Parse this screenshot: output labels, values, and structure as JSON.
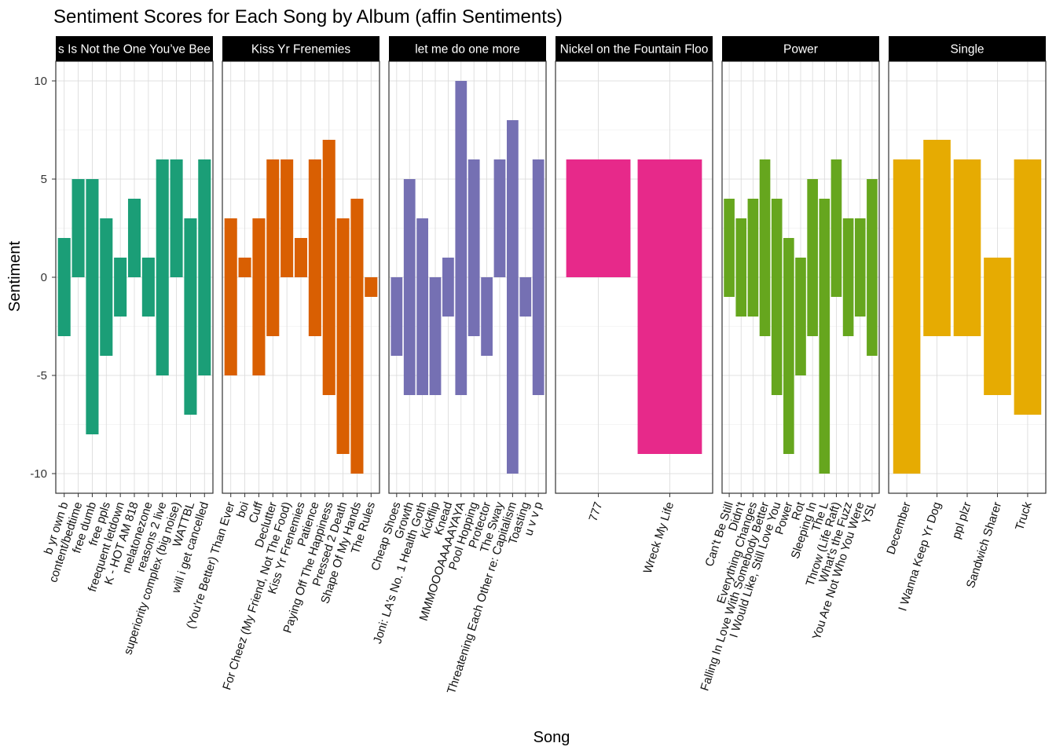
{
  "chart_data": {
    "type": "bar",
    "title": "Sentiment Scores for Each Song by Album (affin Sentiments)",
    "xlabel": "Song",
    "ylabel": "Sentiment",
    "ylim": [
      -11,
      11
    ],
    "y_ticks": [
      -10,
      -5,
      0,
      5,
      10
    ],
    "y_tick_labels": [
      "-10",
      "-5",
      "0",
      "5",
      "10"
    ],
    "grid": true,
    "facets": [
      {
        "album": "This Is Not the One You've Been Looking For",
        "label": "s Is Not the One You’ve Bee",
        "color": "#1B9E77",
        "songs": [
          {
            "name": "b yr own b",
            "pos": 2,
            "neg": -3
          },
          {
            "name": "content/bedtime",
            "pos": 5,
            "neg": 0
          },
          {
            "name": "free dumb",
            "pos": 5,
            "neg": -8
          },
          {
            "name": "free ppls",
            "pos": 3,
            "neg": -4
          },
          {
            "name": "freequent letdown",
            "pos": 1,
            "neg": -2
          },
          {
            "name": "K - HOT AM 818",
            "pos": 4,
            "neg": 0
          },
          {
            "name": "melatonezone",
            "pos": 1,
            "neg": -2
          },
          {
            "name": "reasons 2 live",
            "pos": 6,
            "neg": -5
          },
          {
            "name": "superiority complex (big noise)",
            "pos": 6,
            "neg": 0
          },
          {
            "name": "WATTBL",
            "pos": 3,
            "neg": -7
          },
          {
            "name": "will i get cancelled",
            "pos": 6,
            "neg": -5
          }
        ]
      },
      {
        "album": "Kiss Yr Frenemies",
        "label": "Kiss Yr Frenemies",
        "color": "#D95F02",
        "songs": [
          {
            "name": "(You're Better) Than Ever",
            "pos": 3,
            "neg": -5
          },
          {
            "name": "boi",
            "pos": 1,
            "neg": 0
          },
          {
            "name": "Cuff",
            "pos": 3,
            "neg": -5
          },
          {
            "name": "Declutter",
            "pos": 6,
            "neg": -3
          },
          {
            "name": "For Cheez (My Friend, Not The Food)",
            "pos": 6,
            "neg": 0
          },
          {
            "name": "Kiss Yr Frenemies",
            "pos": 2,
            "neg": 0
          },
          {
            "name": "Patience",
            "pos": 6,
            "neg": -3
          },
          {
            "name": "Paying Off The Happiness",
            "pos": 7,
            "neg": -6
          },
          {
            "name": "Pressed 2 Death",
            "pos": 3,
            "neg": -9
          },
          {
            "name": "Shape Of My Hands",
            "pos": 4,
            "neg": -10
          },
          {
            "name": "The Rules",
            "pos": 0,
            "neg": -1
          }
        ]
      },
      {
        "album": "let me do one more",
        "label": "let me do one more",
        "color": "#7570B3",
        "songs": [
          {
            "name": "Cheap Shoes",
            "pos": 0,
            "neg": -4
          },
          {
            "name": "Growth",
            "pos": 5,
            "neg": -6
          },
          {
            "name": "Joni: LA's No. 1 Health Goth",
            "pos": 3,
            "neg": -6
          },
          {
            "name": "Kickflip",
            "pos": 0,
            "neg": -6
          },
          {
            "name": "Knead",
            "pos": 1,
            "neg": -2
          },
          {
            "name": "MMMOOOAAAAAYAYA",
            "pos": 10,
            "neg": -6
          },
          {
            "name": "Pool Hopping",
            "pos": 6,
            "neg": -3
          },
          {
            "name": "Protector",
            "pos": 0,
            "neg": -4
          },
          {
            "name": "The Sway",
            "pos": 6,
            "neg": 0
          },
          {
            "name": "Threatening Each Other re: Capitalism",
            "pos": 8,
            "neg": -10
          },
          {
            "name": "Toasting",
            "pos": 0,
            "neg": -2
          },
          {
            "name": "u v v p",
            "pos": 6,
            "neg": -6
          }
        ]
      },
      {
        "album": "Nickel on the Fountain Floor",
        "label": "Nickel on the Fountain Floo",
        "color": "#E7298A",
        "songs": [
          {
            "name": "777",
            "pos": 6,
            "neg": 0
          },
          {
            "name": "Wreck My Life",
            "pos": 6,
            "neg": -9
          }
        ]
      },
      {
        "album": "Power",
        "label": "Power",
        "color": "#66A61E",
        "songs": [
          {
            "name": "Can't Be Still",
            "pos": 4,
            "neg": -1
          },
          {
            "name": "Didn't",
            "pos": 3,
            "neg": -2
          },
          {
            "name": "Everything Changes",
            "pos": 4,
            "neg": -2
          },
          {
            "name": "Falling In Love With Somebody Better",
            "pos": 6,
            "neg": -3
          },
          {
            "name": "I Would Like, Still Love You",
            "pos": 4,
            "neg": -6
          },
          {
            "name": "Power",
            "pos": 2,
            "neg": -9
          },
          {
            "name": "Rot",
            "pos": 1,
            "neg": -5
          },
          {
            "name": "Sleeping In",
            "pos": 5,
            "neg": -3
          },
          {
            "name": "The L",
            "pos": 4,
            "neg": -10
          },
          {
            "name": "Throw (Life Raft)",
            "pos": 6,
            "neg": -1
          },
          {
            "name": "What's the Fuzz",
            "pos": 3,
            "neg": -3
          },
          {
            "name": "You Are Not Who You Were",
            "pos": 3,
            "neg": -2
          },
          {
            "name": "YSL",
            "pos": 5,
            "neg": -4
          }
        ]
      },
      {
        "album": "Single",
        "label": "Single",
        "color": "#E6AB02",
        "songs": [
          {
            "name": "December",
            "pos": 6,
            "neg": -10
          },
          {
            "name": "I Wanna Keep Yr Dog",
            "pos": 7,
            "neg": -3
          },
          {
            "name": "ppl plzr",
            "pos": 6,
            "neg": -3
          },
          {
            "name": "Sandwich Sharer",
            "pos": 1,
            "neg": -6
          },
          {
            "name": "Truck",
            "pos": 6,
            "neg": -7
          }
        ]
      }
    ]
  }
}
